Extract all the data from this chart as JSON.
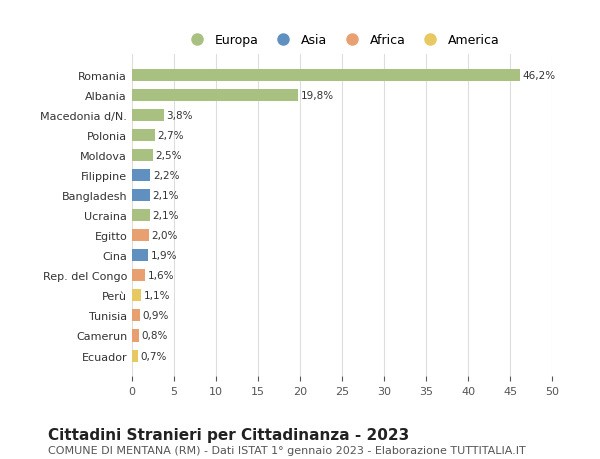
{
  "countries": [
    "Romania",
    "Albania",
    "Macedonia d/N.",
    "Polonia",
    "Moldova",
    "Filippine",
    "Bangladesh",
    "Ucraina",
    "Egitto",
    "Cina",
    "Rep. del Congo",
    "Perù",
    "Tunisia",
    "Camerun",
    "Ecuador"
  ],
  "values": [
    46.2,
    19.8,
    3.8,
    2.7,
    2.5,
    2.2,
    2.1,
    2.1,
    2.0,
    1.9,
    1.6,
    1.1,
    0.9,
    0.8,
    0.7
  ],
  "labels": [
    "46,2%",
    "19,8%",
    "3,8%",
    "2,7%",
    "2,5%",
    "2,2%",
    "2,1%",
    "2,1%",
    "2,0%",
    "1,9%",
    "1,6%",
    "1,1%",
    "0,9%",
    "0,8%",
    "0,7%"
  ],
  "continents": [
    "Europa",
    "Europa",
    "Europa",
    "Europa",
    "Europa",
    "Asia",
    "Asia",
    "Europa",
    "Africa",
    "Asia",
    "Africa",
    "America",
    "Africa",
    "Africa",
    "America"
  ],
  "continent_colors": {
    "Europa": "#a8c080",
    "Asia": "#6090c0",
    "Africa": "#e8a070",
    "America": "#e8c860"
  },
  "legend_order": [
    "Europa",
    "Asia",
    "Africa",
    "America"
  ],
  "title": "Cittadini Stranieri per Cittadinanza - 2023",
  "subtitle": "COMUNE DI MENTANA (RM) - Dati ISTAT 1° gennaio 2023 - Elaborazione TUTTITALIA.IT",
  "xlim": [
    0,
    50
  ],
  "xticks": [
    0,
    5,
    10,
    15,
    20,
    25,
    30,
    35,
    40,
    45,
    50
  ],
  "background_color": "#ffffff",
  "grid_color": "#dddddd",
  "title_fontsize": 11,
  "subtitle_fontsize": 8,
  "label_fontsize": 7.5,
  "tick_fontsize": 8
}
